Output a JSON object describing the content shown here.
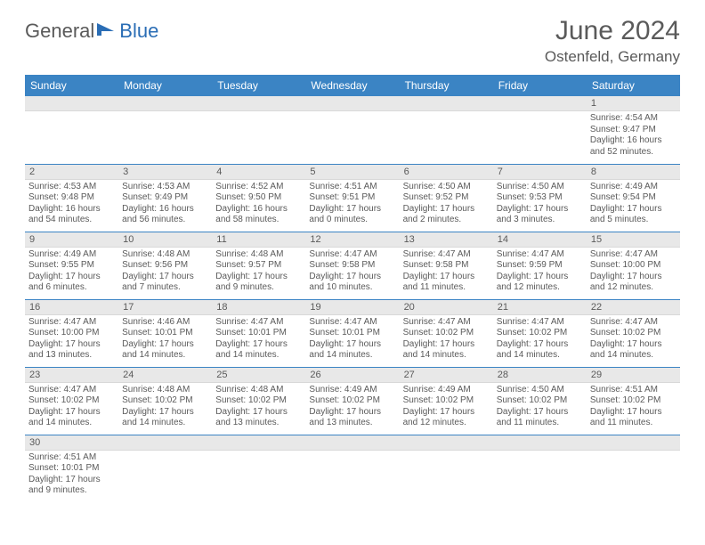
{
  "brand": {
    "part1": "General",
    "part2": "Blue"
  },
  "title": "June 2024",
  "location": "Ostenfeld, Germany",
  "colors": {
    "header_bg": "#3b84c4",
    "header_text": "#ffffff",
    "daynum_bg": "#e8e8e8",
    "text": "#5a5a5a",
    "row_border": "#3b84c4",
    "logo_accent": "#2a6db5"
  },
  "weekdays": [
    "Sunday",
    "Monday",
    "Tuesday",
    "Wednesday",
    "Thursday",
    "Friday",
    "Saturday"
  ],
  "weeks": [
    [
      null,
      null,
      null,
      null,
      null,
      null,
      {
        "n": "1",
        "sr": "Sunrise: 4:54 AM",
        "ss": "Sunset: 9:47 PM",
        "d1": "Daylight: 16 hours",
        "d2": "and 52 minutes."
      }
    ],
    [
      {
        "n": "2",
        "sr": "Sunrise: 4:53 AM",
        "ss": "Sunset: 9:48 PM",
        "d1": "Daylight: 16 hours",
        "d2": "and 54 minutes."
      },
      {
        "n": "3",
        "sr": "Sunrise: 4:53 AM",
        "ss": "Sunset: 9:49 PM",
        "d1": "Daylight: 16 hours",
        "d2": "and 56 minutes."
      },
      {
        "n": "4",
        "sr": "Sunrise: 4:52 AM",
        "ss": "Sunset: 9:50 PM",
        "d1": "Daylight: 16 hours",
        "d2": "and 58 minutes."
      },
      {
        "n": "5",
        "sr": "Sunrise: 4:51 AM",
        "ss": "Sunset: 9:51 PM",
        "d1": "Daylight: 17 hours",
        "d2": "and 0 minutes."
      },
      {
        "n": "6",
        "sr": "Sunrise: 4:50 AM",
        "ss": "Sunset: 9:52 PM",
        "d1": "Daylight: 17 hours",
        "d2": "and 2 minutes."
      },
      {
        "n": "7",
        "sr": "Sunrise: 4:50 AM",
        "ss": "Sunset: 9:53 PM",
        "d1": "Daylight: 17 hours",
        "d2": "and 3 minutes."
      },
      {
        "n": "8",
        "sr": "Sunrise: 4:49 AM",
        "ss": "Sunset: 9:54 PM",
        "d1": "Daylight: 17 hours",
        "d2": "and 5 minutes."
      }
    ],
    [
      {
        "n": "9",
        "sr": "Sunrise: 4:49 AM",
        "ss": "Sunset: 9:55 PM",
        "d1": "Daylight: 17 hours",
        "d2": "and 6 minutes."
      },
      {
        "n": "10",
        "sr": "Sunrise: 4:48 AM",
        "ss": "Sunset: 9:56 PM",
        "d1": "Daylight: 17 hours",
        "d2": "and 7 minutes."
      },
      {
        "n": "11",
        "sr": "Sunrise: 4:48 AM",
        "ss": "Sunset: 9:57 PM",
        "d1": "Daylight: 17 hours",
        "d2": "and 9 minutes."
      },
      {
        "n": "12",
        "sr": "Sunrise: 4:47 AM",
        "ss": "Sunset: 9:58 PM",
        "d1": "Daylight: 17 hours",
        "d2": "and 10 minutes."
      },
      {
        "n": "13",
        "sr": "Sunrise: 4:47 AM",
        "ss": "Sunset: 9:58 PM",
        "d1": "Daylight: 17 hours",
        "d2": "and 11 minutes."
      },
      {
        "n": "14",
        "sr": "Sunrise: 4:47 AM",
        "ss": "Sunset: 9:59 PM",
        "d1": "Daylight: 17 hours",
        "d2": "and 12 minutes."
      },
      {
        "n": "15",
        "sr": "Sunrise: 4:47 AM",
        "ss": "Sunset: 10:00 PM",
        "d1": "Daylight: 17 hours",
        "d2": "and 12 minutes."
      }
    ],
    [
      {
        "n": "16",
        "sr": "Sunrise: 4:47 AM",
        "ss": "Sunset: 10:00 PM",
        "d1": "Daylight: 17 hours",
        "d2": "and 13 minutes."
      },
      {
        "n": "17",
        "sr": "Sunrise: 4:46 AM",
        "ss": "Sunset: 10:01 PM",
        "d1": "Daylight: 17 hours",
        "d2": "and 14 minutes."
      },
      {
        "n": "18",
        "sr": "Sunrise: 4:47 AM",
        "ss": "Sunset: 10:01 PM",
        "d1": "Daylight: 17 hours",
        "d2": "and 14 minutes."
      },
      {
        "n": "19",
        "sr": "Sunrise: 4:47 AM",
        "ss": "Sunset: 10:01 PM",
        "d1": "Daylight: 17 hours",
        "d2": "and 14 minutes."
      },
      {
        "n": "20",
        "sr": "Sunrise: 4:47 AM",
        "ss": "Sunset: 10:02 PM",
        "d1": "Daylight: 17 hours",
        "d2": "and 14 minutes."
      },
      {
        "n": "21",
        "sr": "Sunrise: 4:47 AM",
        "ss": "Sunset: 10:02 PM",
        "d1": "Daylight: 17 hours",
        "d2": "and 14 minutes."
      },
      {
        "n": "22",
        "sr": "Sunrise: 4:47 AM",
        "ss": "Sunset: 10:02 PM",
        "d1": "Daylight: 17 hours",
        "d2": "and 14 minutes."
      }
    ],
    [
      {
        "n": "23",
        "sr": "Sunrise: 4:47 AM",
        "ss": "Sunset: 10:02 PM",
        "d1": "Daylight: 17 hours",
        "d2": "and 14 minutes."
      },
      {
        "n": "24",
        "sr": "Sunrise: 4:48 AM",
        "ss": "Sunset: 10:02 PM",
        "d1": "Daylight: 17 hours",
        "d2": "and 14 minutes."
      },
      {
        "n": "25",
        "sr": "Sunrise: 4:48 AM",
        "ss": "Sunset: 10:02 PM",
        "d1": "Daylight: 17 hours",
        "d2": "and 13 minutes."
      },
      {
        "n": "26",
        "sr": "Sunrise: 4:49 AM",
        "ss": "Sunset: 10:02 PM",
        "d1": "Daylight: 17 hours",
        "d2": "and 13 minutes."
      },
      {
        "n": "27",
        "sr": "Sunrise: 4:49 AM",
        "ss": "Sunset: 10:02 PM",
        "d1": "Daylight: 17 hours",
        "d2": "and 12 minutes."
      },
      {
        "n": "28",
        "sr": "Sunrise: 4:50 AM",
        "ss": "Sunset: 10:02 PM",
        "d1": "Daylight: 17 hours",
        "d2": "and 11 minutes."
      },
      {
        "n": "29",
        "sr": "Sunrise: 4:51 AM",
        "ss": "Sunset: 10:02 PM",
        "d1": "Daylight: 17 hours",
        "d2": "and 11 minutes."
      }
    ],
    [
      {
        "n": "30",
        "sr": "Sunrise: 4:51 AM",
        "ss": "Sunset: 10:01 PM",
        "d1": "Daylight: 17 hours",
        "d2": "and 9 minutes."
      },
      null,
      null,
      null,
      null,
      null,
      null
    ]
  ]
}
